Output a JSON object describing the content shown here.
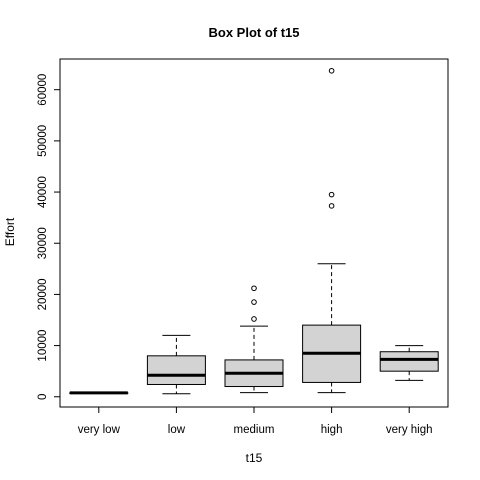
{
  "chart_data": {
    "type": "box",
    "title": "Box Plot of t15",
    "xlabel": "t15",
    "ylabel": "Effort",
    "categories": [
      "very low",
      "low",
      "medium",
      "high",
      "very high"
    ],
    "y_ticks": [
      0,
      10000,
      20000,
      30000,
      40000,
      50000,
      60000
    ],
    "ylim": [
      -2000,
      66000
    ],
    "grid": false,
    "legend": "none",
    "box_fill": "#d3d3d3",
    "boxes": [
      {
        "category": "very low",
        "whisker_low": 750,
        "q1": 750,
        "median": 750,
        "q3": 750,
        "whisker_high": 750,
        "outliers": []
      },
      {
        "category": "low",
        "whisker_low": 600,
        "q1": 2400,
        "median": 4200,
        "q3": 8000,
        "whisker_high": 12000,
        "outliers": []
      },
      {
        "category": "medium",
        "whisker_low": 800,
        "q1": 2000,
        "median": 4600,
        "q3": 7200,
        "whisker_high": 13800,
        "outliers": [
          15200,
          18500,
          21200
        ]
      },
      {
        "category": "high",
        "whisker_low": 800,
        "q1": 2800,
        "median": 8500,
        "q3": 14000,
        "whisker_high": 26000,
        "outliers": [
          37300,
          39500,
          63700
        ]
      },
      {
        "category": "very high",
        "whisker_low": 3200,
        "q1": 5000,
        "median": 7300,
        "q3": 8800,
        "whisker_high": 10000,
        "outliers": []
      }
    ]
  }
}
